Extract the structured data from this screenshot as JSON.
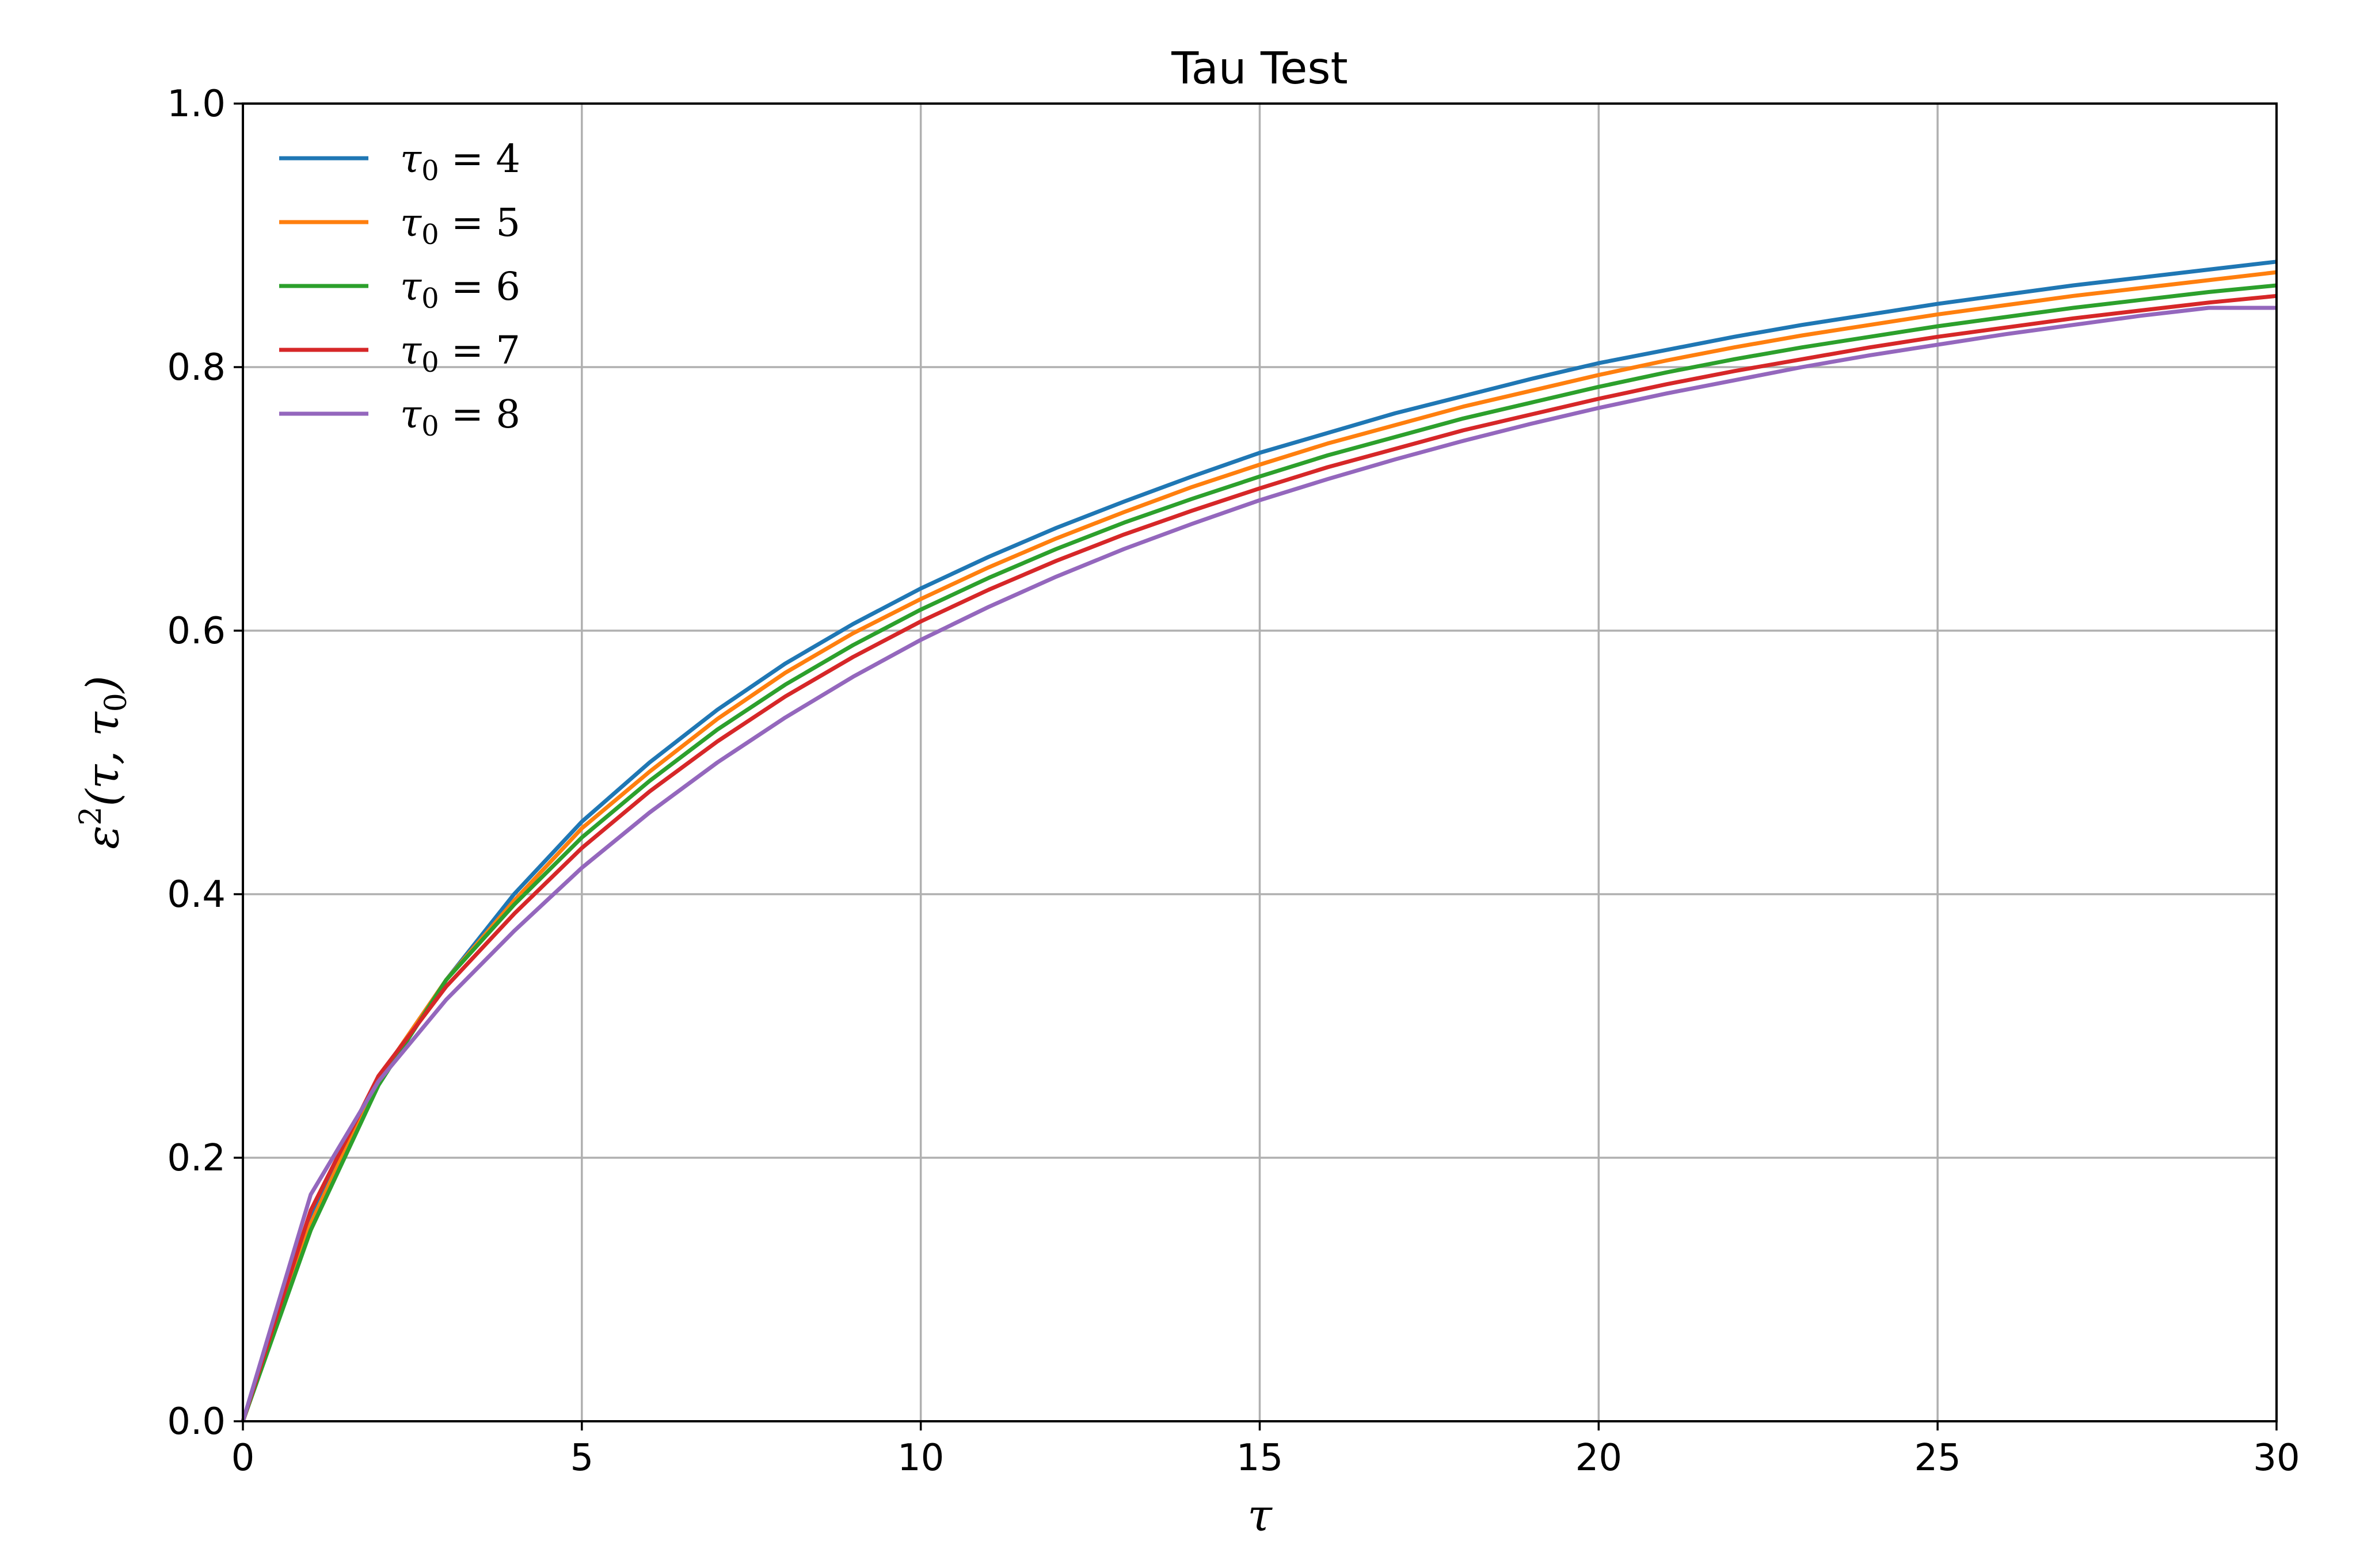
{
  "chart_data": {
    "type": "line",
    "title": "Tau Test",
    "xlabel": "τ",
    "ylabel": "ε²(τ, τ₀)",
    "ylabel_parts": {
      "base": "ε",
      "sup": "2",
      "args": "(τ, τ",
      "sub": "0",
      "close": ")"
    },
    "xlim": [
      0,
      30
    ],
    "ylim": [
      0,
      1.0
    ],
    "xticks": [
      0,
      5,
      10,
      15,
      20,
      25,
      30
    ],
    "xtick_labels": [
      "0",
      "5",
      "10",
      "15",
      "20",
      "25",
      "30"
    ],
    "yticks": [
      0.0,
      0.2,
      0.4,
      0.6,
      0.8,
      1.0
    ],
    "ytick_labels": [
      "0.0",
      "0.2",
      "0.4",
      "0.6",
      "0.8",
      "1.0"
    ],
    "grid": true,
    "legend_position": "top-left",
    "x": [
      0,
      1,
      2,
      3,
      4,
      5,
      6,
      7,
      8,
      9,
      10,
      11,
      12,
      13,
      14,
      15,
      16,
      17,
      18,
      19,
      20,
      21,
      22,
      23,
      24,
      25,
      26,
      27,
      28,
      29,
      30
    ],
    "series": [
      {
        "name": "τ₀ = 4",
        "label_var": "τ",
        "label_sub": "0",
        "label_eq": " = 4",
        "color": "#1f77b4",
        "values": [
          0,
          0.155,
          0.26,
          0.335,
          0.4,
          0.455,
          0.5,
          0.54,
          0.575,
          0.605,
          0.632,
          0.656,
          0.678,
          0.698,
          0.717,
          0.735,
          0.75,
          0.765,
          0.778,
          0.791,
          0.803,
          0.813,
          0.823,
          0.832,
          0.84,
          0.848,
          0.855,
          0.862,
          0.868,
          0.874,
          0.88
        ]
      },
      {
        "name": "τ₀ = 5",
        "label_var": "τ",
        "label_sub": "0",
        "label_eq": " = 5",
        "color": "#ff7f0e",
        "values": [
          0,
          0.15,
          0.26,
          0.335,
          0.395,
          0.45,
          0.493,
          0.533,
          0.568,
          0.598,
          0.624,
          0.648,
          0.67,
          0.69,
          0.709,
          0.726,
          0.742,
          0.756,
          0.77,
          0.782,
          0.794,
          0.805,
          0.815,
          0.824,
          0.832,
          0.84,
          0.847,
          0.854,
          0.86,
          0.866,
          0.872
        ]
      },
      {
        "name": "τ₀ = 6",
        "label_var": "τ",
        "label_sub": "0",
        "label_eq": " = 6",
        "color": "#2ca02c",
        "values": [
          0,
          0.145,
          0.255,
          0.335,
          0.392,
          0.443,
          0.486,
          0.525,
          0.559,
          0.589,
          0.616,
          0.64,
          0.662,
          0.682,
          0.7,
          0.717,
          0.733,
          0.747,
          0.761,
          0.773,
          0.785,
          0.796,
          0.806,
          0.815,
          0.823,
          0.831,
          0.838,
          0.845,
          0.851,
          0.857,
          0.862
        ]
      },
      {
        "name": "τ₀ = 7",
        "label_var": "τ",
        "label_sub": "0",
        "label_eq": " = 7",
        "color": "#d62728",
        "values": [
          0,
          0.16,
          0.262,
          0.33,
          0.385,
          0.435,
          0.478,
          0.516,
          0.55,
          0.58,
          0.607,
          0.631,
          0.653,
          0.673,
          0.691,
          0.708,
          0.724,
          0.738,
          0.752,
          0.764,
          0.776,
          0.787,
          0.797,
          0.806,
          0.815,
          0.823,
          0.83,
          0.837,
          0.843,
          0.849,
          0.854
        ]
      },
      {
        "name": "τ₀ = 8",
        "label_var": "τ",
        "label_sub": "0",
        "label_eq": " = 8",
        "color": "#9467bd",
        "values": [
          0,
          0.172,
          0.258,
          0.32,
          0.372,
          0.42,
          0.462,
          0.5,
          0.534,
          0.565,
          0.593,
          0.618,
          0.641,
          0.662,
          0.681,
          0.699,
          0.715,
          0.73,
          0.744,
          0.757,
          0.769,
          0.78,
          0.79,
          0.8,
          0.809,
          0.817,
          0.825,
          0.832,
          0.839,
          0.845,
          0.845
        ]
      }
    ]
  }
}
